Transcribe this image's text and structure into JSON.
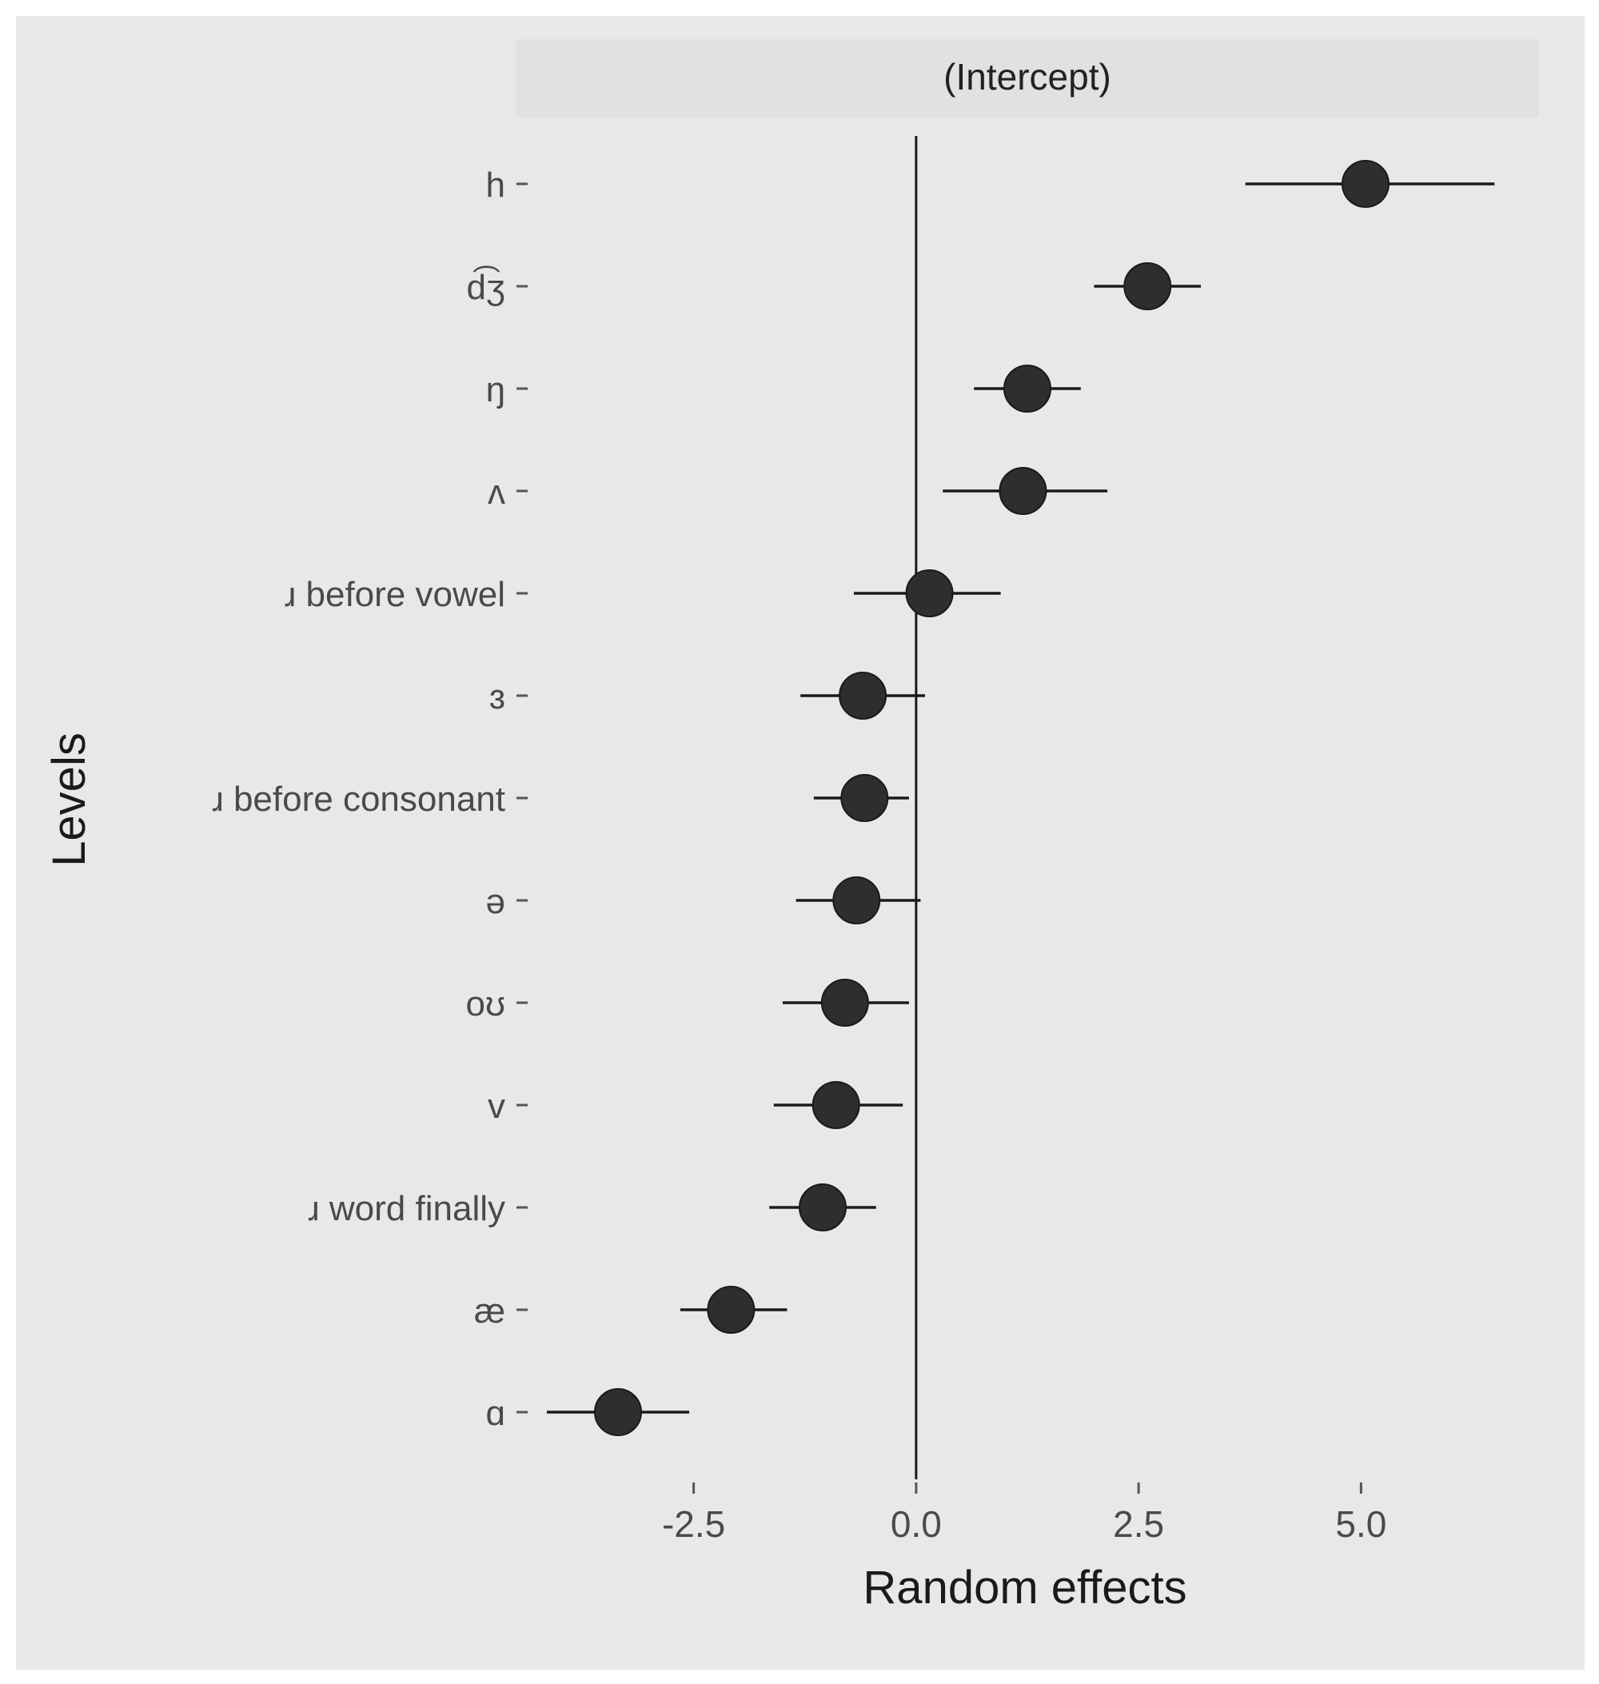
{
  "chart_data": {
    "type": "scatter",
    "facet_label": "(Intercept)",
    "xlabel": "Random effects",
    "ylabel": "Levels",
    "xlim": [
      -4.5,
      7.0
    ],
    "xticks": [
      -2.5,
      0.0,
      2.5,
      5.0
    ],
    "xtick_labels": [
      "-2.5",
      "0.0",
      "2.5",
      "5.0"
    ],
    "reference_line_x": 0,
    "grid": false,
    "categories": [
      "h",
      "d͡ʒ",
      "ŋ",
      "ʌ",
      "ɹ before vowel",
      "ɜ",
      "ɹ before consonant",
      "ə",
      "oʊ",
      "v",
      "ɹ word finally",
      "æ",
      "ɑ"
    ],
    "estimates": [
      5.05,
      2.6,
      1.25,
      1.2,
      0.15,
      -0.6,
      -0.58,
      -0.67,
      -0.8,
      -0.9,
      -1.05,
      -2.08,
      -3.35
    ],
    "lower": [
      3.7,
      2.0,
      0.65,
      0.3,
      -0.7,
      -1.3,
      -1.15,
      -1.35,
      -1.5,
      -1.6,
      -1.65,
      -2.65,
      -4.15
    ],
    "upper": [
      6.5,
      3.2,
      1.85,
      2.15,
      0.95,
      0.1,
      -0.08,
      0.05,
      -0.08,
      -0.15,
      -0.45,
      -1.45,
      -2.55
    ]
  },
  "colors": {
    "figure_background": "#e8e8e8",
    "strip_background": "#e1e1e1",
    "point": "#2e2e2e",
    "errorbar": "#1a1a1a",
    "reference_line": "#1a1a1a",
    "tick_label": "#4a4a4a"
  }
}
